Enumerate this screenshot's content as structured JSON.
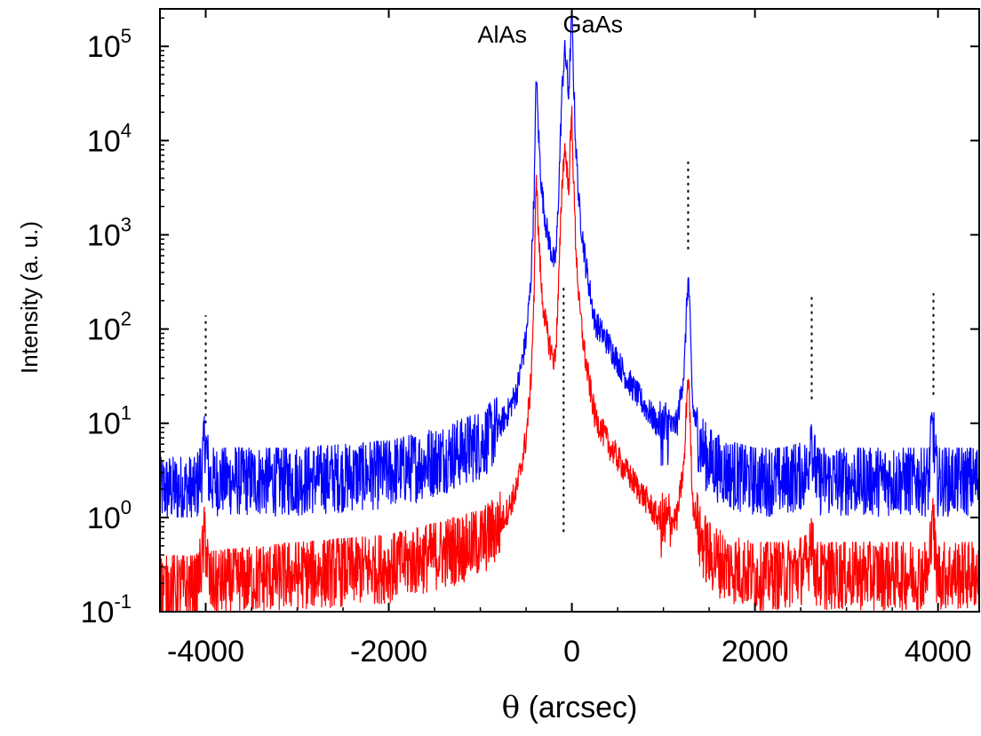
{
  "chart_data": {
    "type": "line",
    "title": "",
    "xlabel": {
      "symbol": "θ",
      "text": " (arcsec)"
    },
    "ylabel": "Intensity (a. u.)",
    "xlim": [
      -4500,
      4450
    ],
    "ylim": [
      0.1,
      250000
    ],
    "yscale": "log",
    "grid": false,
    "legend": "none",
    "x_ticks": [
      -4000,
      -2000,
      0,
      2000,
      4000
    ],
    "x_tick_labels": [
      "-4000",
      "-2000",
      "0",
      "2000",
      "4000"
    ],
    "y_ticks": [
      {
        "value": 0.1,
        "base": "10",
        "exp": "-1"
      },
      {
        "value": 1,
        "base": "10",
        "exp": "0"
      },
      {
        "value": 10,
        "base": "10",
        "exp": "1"
      },
      {
        "value": 100,
        "base": "10",
        "exp": "2"
      },
      {
        "value": 1000,
        "base": "10",
        "exp": "3"
      },
      {
        "value": 10000,
        "base": "10",
        "exp": "4"
      },
      {
        "value": 100000,
        "base": "10",
        "exp": "5"
      }
    ],
    "annotations": [
      {
        "text": "AlAs",
        "x": -760,
        "y": 110000
      },
      {
        "text": "GaAs",
        "x": 230,
        "y": 140000
      }
    ],
    "series": [
      {
        "color": "#0000ff",
        "background_range": [
          1,
          3
        ],
        "x": [
          -4500,
          -4100,
          -4030,
          -4010,
          -3960,
          -3000,
          -2000,
          -1500,
          -1000,
          -800,
          -700,
          -600,
          -500,
          -450,
          -410,
          -390,
          -370,
          -330,
          -280,
          -230,
          -190,
          -170,
          -150,
          -110,
          -80,
          -55,
          -40,
          -25,
          -15,
          0,
          15,
          40,
          80,
          150,
          250,
          400,
          600,
          800,
          1000,
          1150,
          1230,
          1260,
          1275,
          1290,
          1320,
          1400,
          1500,
          1700,
          2000,
          2300,
          2580,
          2610,
          2640,
          2680,
          3000,
          3500,
          3900,
          3940,
          3960,
          3990,
          4450
        ],
        "y": [
          2,
          2,
          4,
          7.5,
          2.5,
          2.5,
          3,
          4,
          6,
          9,
          13,
          22,
          80,
          300,
          3000,
          60000,
          15000,
          3000,
          1200,
          700,
          480,
          700,
          2000,
          30000,
          90000,
          60000,
          30000,
          50000,
          100000,
          230000,
          60000,
          10000,
          2000,
          500,
          120,
          70,
          30,
          15,
          8,
          10,
          40,
          250,
          340,
          120,
          15,
          6,
          4,
          3,
          2.5,
          2.5,
          3,
          10,
          4,
          2.5,
          2.5,
          2.5,
          2.5,
          12,
          5,
          2.5,
          2.5
        ]
      },
      {
        "color": "#ff0000",
        "background_range": [
          0.1,
          0.3
        ],
        "x": [
          -4500,
          -4100,
          -4030,
          -4010,
          -3960,
          -3000,
          -2000,
          -1500,
          -1000,
          -800,
          -700,
          -600,
          -500,
          -450,
          -410,
          -390,
          -370,
          -330,
          -280,
          -230,
          -190,
          -170,
          -150,
          -110,
          -80,
          -55,
          -40,
          -25,
          -15,
          0,
          15,
          40,
          80,
          150,
          250,
          400,
          600,
          800,
          1000,
          1150,
          1230,
          1260,
          1275,
          1290,
          1320,
          1400,
          1500,
          1700,
          2000,
          2300,
          2580,
          2610,
          2640,
          2680,
          3000,
          3500,
          3900,
          3940,
          3960,
          3990,
          4450
        ],
        "y": [
          0.18,
          0.18,
          0.4,
          0.7,
          0.2,
          0.25,
          0.3,
          0.4,
          0.55,
          0.8,
          1.2,
          2,
          7,
          25,
          260,
          5500,
          1300,
          250,
          100,
          60,
          45,
          80,
          200,
          3000,
          8500,
          5500,
          3000,
          5000,
          10000,
          20000,
          5000,
          900,
          180,
          45,
          12,
          6,
          3,
          1.6,
          0.8,
          1,
          4,
          25,
          32,
          11,
          1.5,
          0.6,
          0.4,
          0.3,
          0.25,
          0.25,
          0.3,
          0.9,
          0.35,
          0.25,
          0.25,
          0.25,
          0.25,
          1.5,
          0.5,
          0.25,
          0.25
        ]
      }
    ],
    "dotted_markers": [
      {
        "x": -4000,
        "y_from": 10,
        "y_to": 140
      },
      {
        "x": -90,
        "y_from": 0.7,
        "y_to": 300
      },
      {
        "x": 1270,
        "y_from": 700,
        "y_to": 6500
      },
      {
        "x": 2620,
        "y_from": 18,
        "y_to": 240
      },
      {
        "x": 3950,
        "y_from": 20,
        "y_to": 240
      }
    ]
  }
}
